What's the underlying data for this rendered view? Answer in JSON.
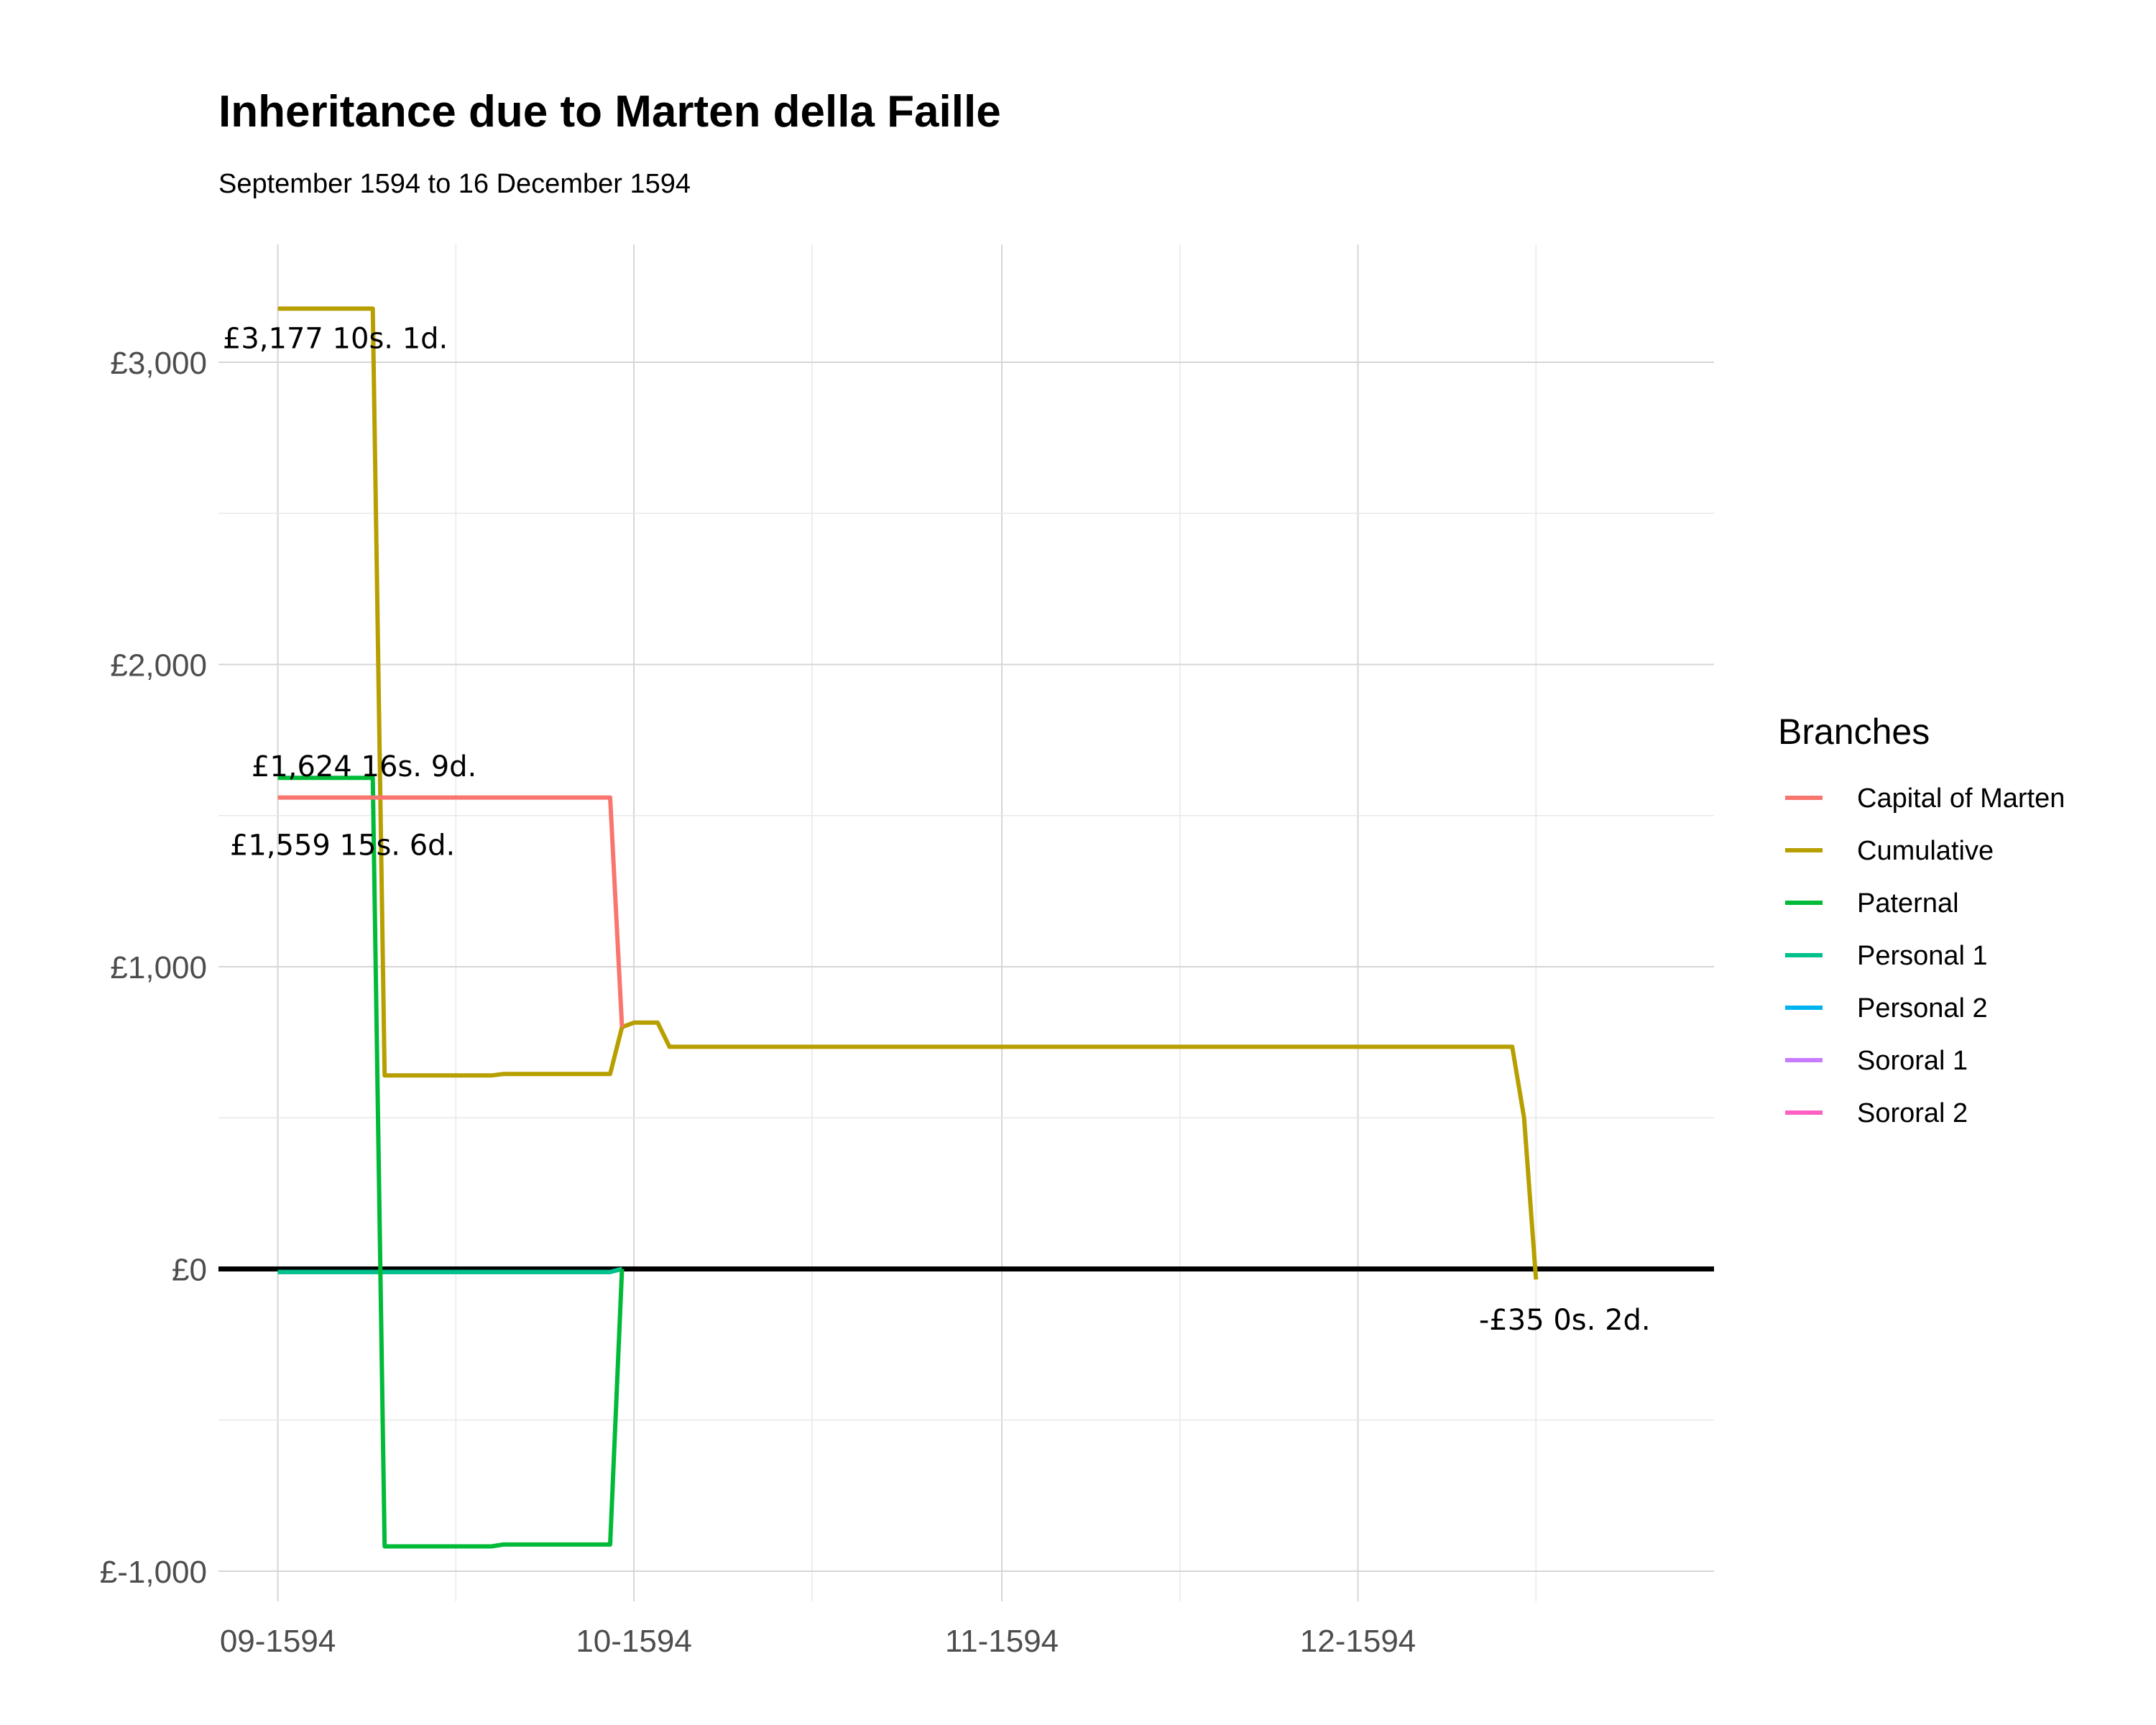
{
  "chart_data": {
    "type": "line",
    "title": "Inheritance due to Marten della Faille",
    "subtitle": "September 1594 to 16 December 1594",
    "xlabel": "",
    "ylabel": "",
    "x_ticks": [
      "09-1594",
      "10-1594",
      "11-1594",
      "12-1594"
    ],
    "y_ticks": [
      "£-1,000",
      "£0",
      "£1,000",
      "£2,000",
      "£3,000"
    ],
    "y_tick_values": [
      -1000,
      0,
      1000,
      2000,
      3000
    ],
    "xlim": [
      "1594-08-27",
      "1594-12-31"
    ],
    "ylim": [
      -1100,
      3390
    ],
    "grid": true,
    "zero_line": true,
    "legend": {
      "title": "Branches",
      "position": "right"
    },
    "series": [
      {
        "name": "Capital of Marten",
        "color": "#F8766D",
        "points": [
          [
            "1594-09-01",
            1559.78
          ],
          [
            "1594-09-28",
            1559.78
          ],
          [
            "1594-09-29",
            1559.78
          ],
          [
            "1594-09-30",
            800
          ]
        ]
      },
      {
        "name": "Cumulative",
        "color": "#B79F00",
        "points": [
          [
            "1594-09-01",
            3177.5
          ],
          [
            "1594-09-09",
            3177.5
          ],
          [
            "1594-09-10",
            640
          ],
          [
            "1594-09-19",
            640
          ],
          [
            "1594-09-20",
            645
          ],
          [
            "1594-09-29",
            645
          ],
          [
            "1594-09-30",
            800
          ],
          [
            "1594-10-01",
            815
          ],
          [
            "1594-10-03",
            815
          ],
          [
            "1594-10-04",
            735
          ],
          [
            "1594-12-14",
            735
          ],
          [
            "1594-12-15",
            500
          ],
          [
            "1594-12-16",
            -35.01
          ]
        ]
      },
      {
        "name": "Paternal",
        "color": "#00BA38",
        "points": [
          [
            "1594-09-01",
            1624.84
          ],
          [
            "1594-09-09",
            1624.84
          ],
          [
            "1594-09-10",
            -918
          ],
          [
            "1594-09-19",
            -918
          ],
          [
            "1594-09-20",
            -912
          ],
          [
            "1594-09-29",
            -912
          ],
          [
            "1594-09-30",
            0
          ]
        ]
      },
      {
        "name": "Personal 1",
        "color": "#00C08B",
        "points": [
          [
            "1594-09-01",
            -10
          ],
          [
            "1594-09-29",
            -10
          ],
          [
            "1594-09-30",
            0
          ]
        ]
      },
      {
        "name": "Personal 2",
        "color": "#00B4F0",
        "points": [
          [
            "1594-09-01",
            -10
          ],
          [
            "1594-09-29",
            -10
          ],
          [
            "1594-09-30",
            0
          ]
        ]
      },
      {
        "name": "Sororal 1",
        "color": "#C77CFF",
        "points": []
      },
      {
        "name": "Sororal 2",
        "color": "#FF61C3",
        "points": []
      }
    ],
    "annotations": [
      {
        "text": "£3,177 10s. 1d.",
        "x": "1594-09-01",
        "y": 3177.5
      },
      {
        "text": "£1,624 16s. 9d.",
        "x": "1594-09-01",
        "y": 1624.84
      },
      {
        "text": "£1,559 15s. 6d.",
        "x": "1594-09-01",
        "y": 1559.78
      },
      {
        "text": "-£35 0s. 2d.",
        "x": "1594-12-16",
        "y": -35.01
      }
    ]
  }
}
